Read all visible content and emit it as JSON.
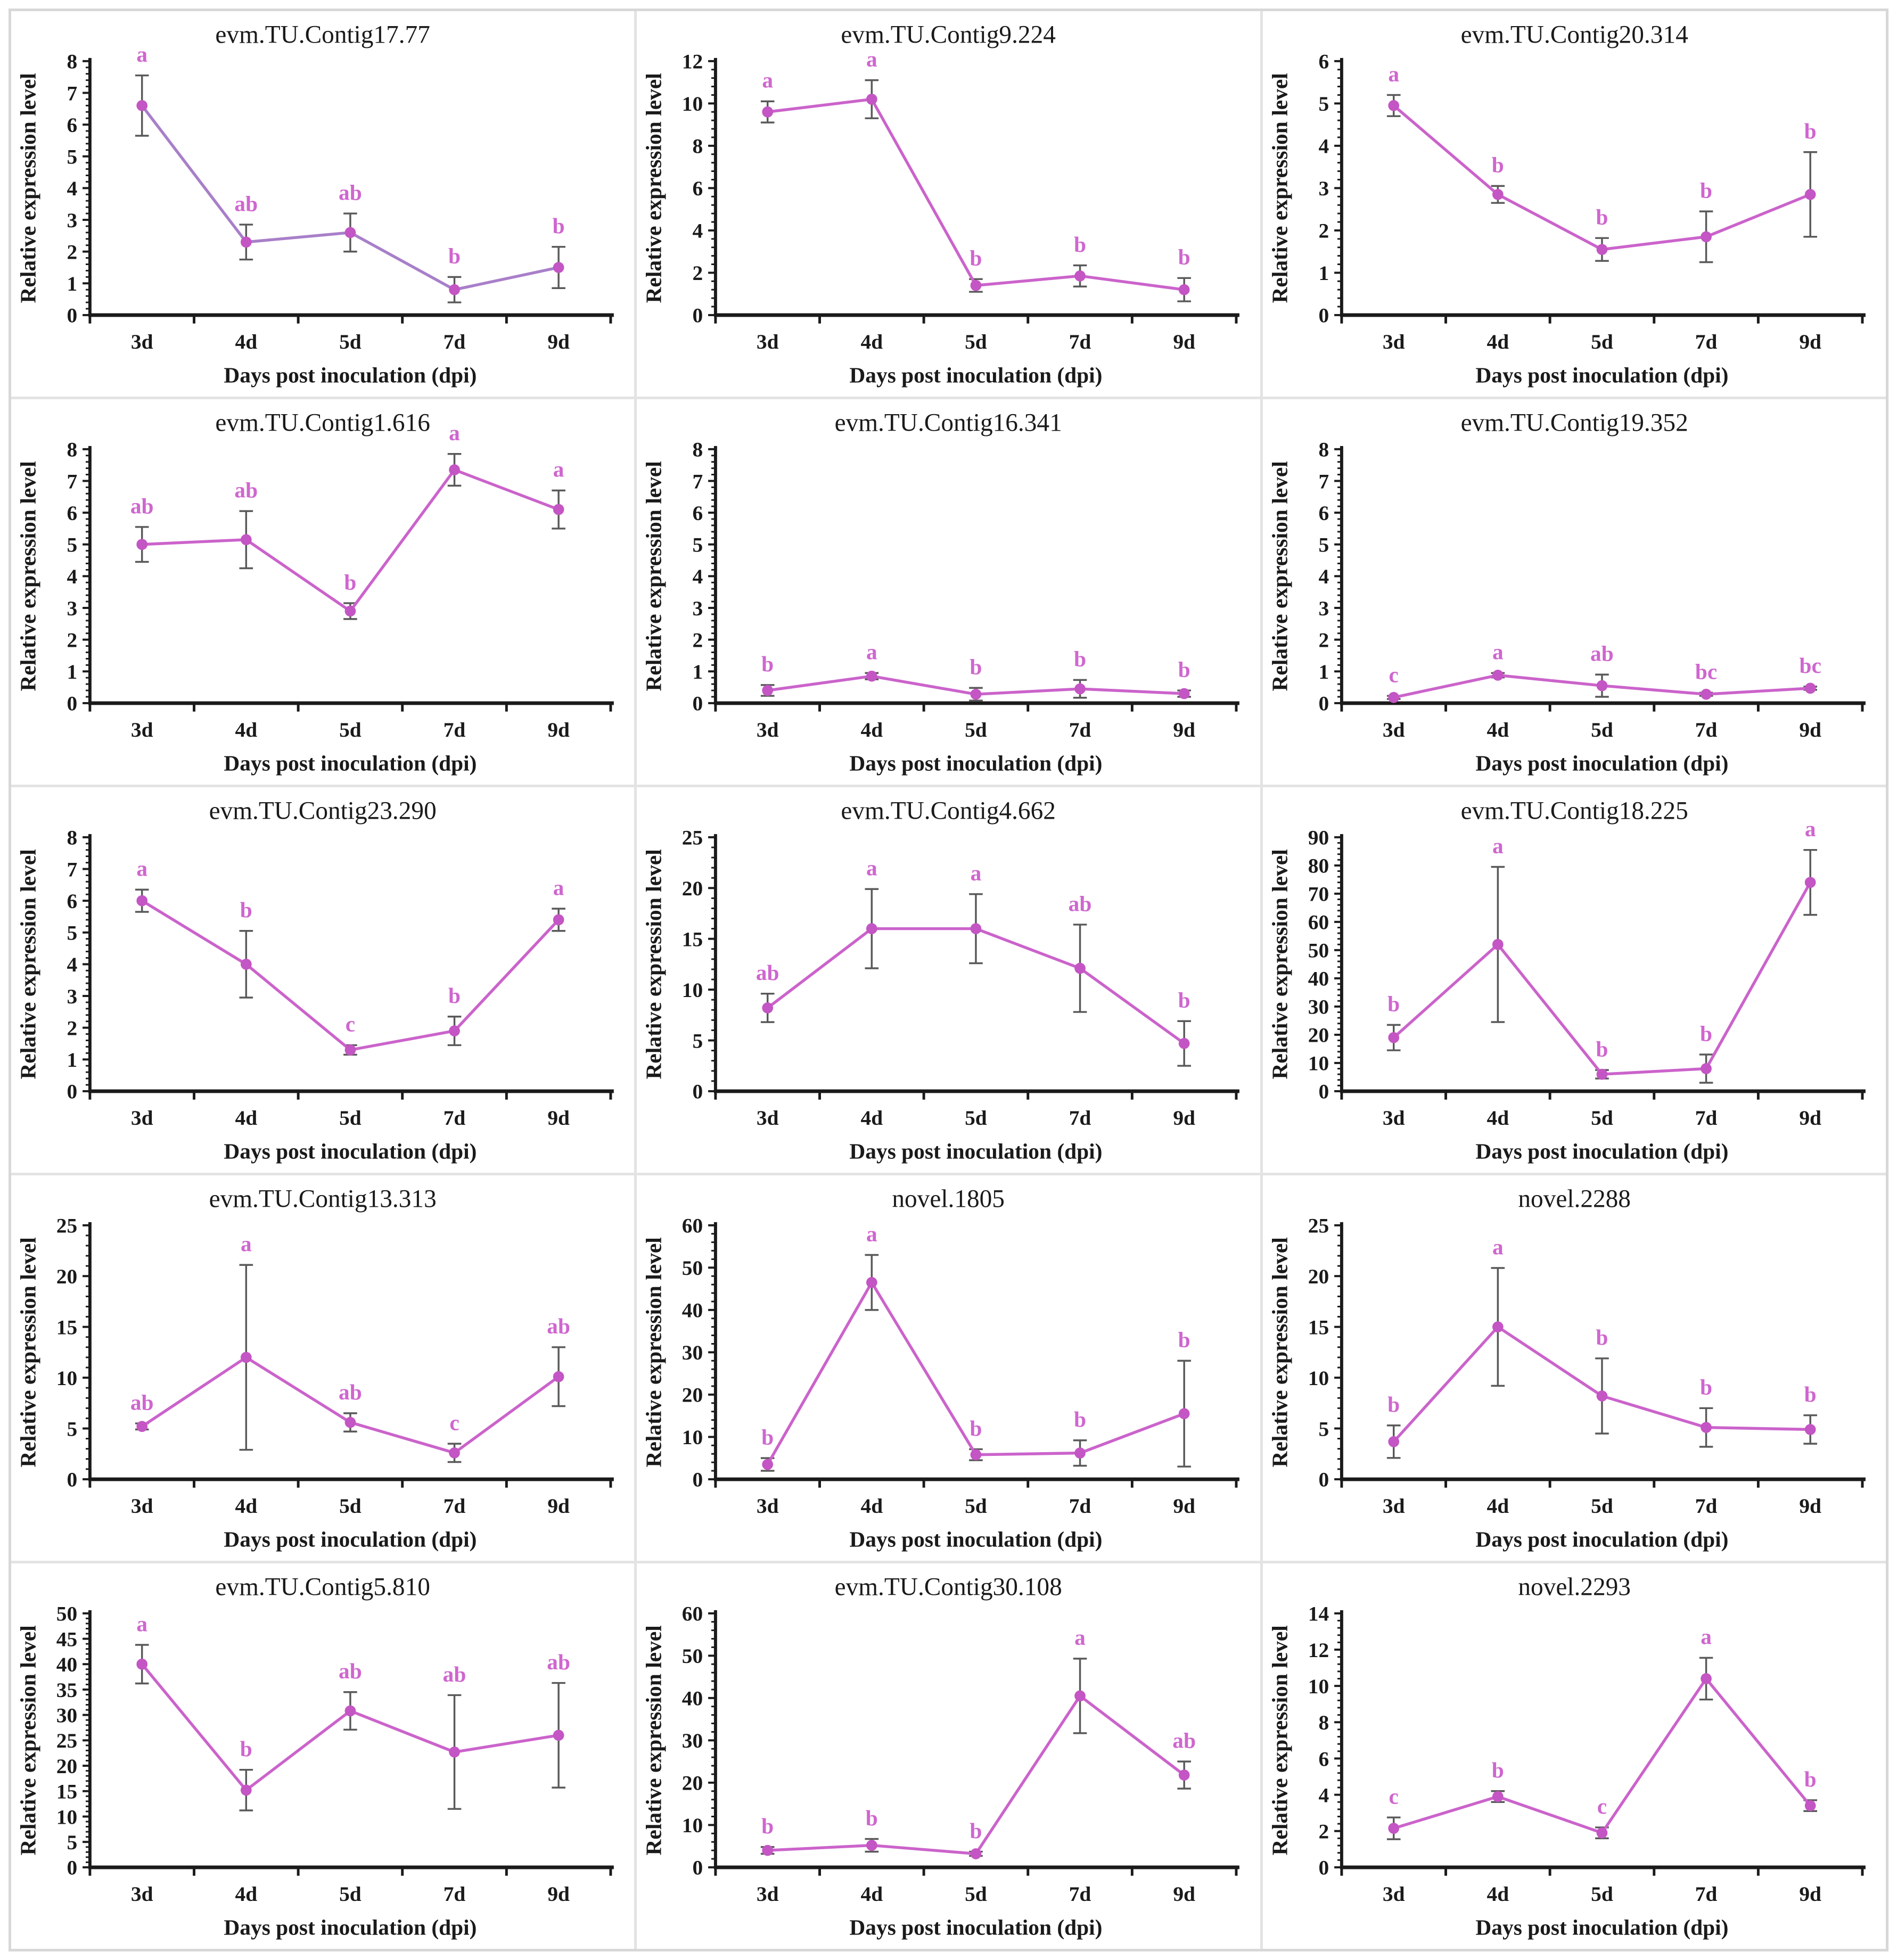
{
  "figure": {
    "ylabel": "Relative expression level",
    "xlabel": "Days post inoculation (dpi)",
    "categories": [
      "3d",
      "4d",
      "5d",
      "7d",
      "9d"
    ],
    "colors": {
      "axis": "#1a1a1a",
      "tick_text": "#1a1a1a",
      "title_text": "#1a1a1a",
      "error_bar": "#595959",
      "letters": "#cf66cf",
      "marker": "#c455c4",
      "default_line": "#cb63cb",
      "panel_border": "#d8d8d8",
      "panel_divider": "#e3e3e3"
    }
  },
  "chart_data": [
    {
      "type": "line",
      "title": "evm.TU.Contig17.77",
      "xlabel": "Days post inoculation (dpi)",
      "ylabel": "Relative expression level",
      "categories": [
        "3d",
        "4d",
        "5d",
        "7d",
        "9d"
      ],
      "values": [
        6.6,
        2.3,
        2.6,
        0.8,
        1.5
      ],
      "errors": [
        0.95,
        0.55,
        0.6,
        0.4,
        0.65
      ],
      "significance_letters": [
        "a",
        "ab",
        "ab",
        "b",
        "b"
      ],
      "ylim": [
        0,
        8
      ],
      "ytick_step": 1,
      "line_color": "#a87fc9"
    },
    {
      "type": "line",
      "title": "evm.TU.Contig9.224",
      "xlabel": "Days post inoculation (dpi)",
      "ylabel": "Relative expression level",
      "categories": [
        "3d",
        "4d",
        "5d",
        "7d",
        "9d"
      ],
      "values": [
        9.6,
        10.2,
        1.4,
        1.85,
        1.2
      ],
      "errors": [
        0.5,
        0.9,
        0.3,
        0.5,
        0.55
      ],
      "significance_letters": [
        "a",
        "a",
        "b",
        "b",
        "b"
      ],
      "ylim": [
        0,
        12
      ],
      "ytick_step": 2,
      "line_color": "#cb63cb"
    },
    {
      "type": "line",
      "title": "evm.TU.Contig20.314",
      "xlabel": "Days post inoculation (dpi)",
      "ylabel": "Relative expression level",
      "categories": [
        "3d",
        "4d",
        "5d",
        "7d",
        "9d"
      ],
      "values": [
        4.95,
        2.85,
        1.55,
        1.85,
        2.85
      ],
      "errors": [
        0.25,
        0.2,
        0.27,
        0.6,
        1.0
      ],
      "significance_letters": [
        "a",
        "b",
        "b",
        "b",
        "b"
      ],
      "ylim": [
        0,
        6
      ],
      "ytick_step": 1,
      "line_color": "#cb63cb"
    },
    {
      "type": "line",
      "title": "evm.TU.Contig1.616",
      "xlabel": "Days post inoculation (dpi)",
      "ylabel": "Relative expression level",
      "categories": [
        "3d",
        "4d",
        "5d",
        "7d",
        "9d"
      ],
      "values": [
        5.0,
        5.15,
        2.9,
        7.35,
        6.1
      ],
      "errors": [
        0.55,
        0.9,
        0.25,
        0.5,
        0.6
      ],
      "significance_letters": [
        "ab",
        "ab",
        "b",
        "a",
        "a"
      ],
      "ylim": [
        0,
        8
      ],
      "ytick_step": 1,
      "line_color": "#cb63cb"
    },
    {
      "type": "line",
      "title": "evm.TU.Contig16.341",
      "xlabel": "Days post inoculation (dpi)",
      "ylabel": "Relative expression level",
      "categories": [
        "3d",
        "4d",
        "5d",
        "7d",
        "9d"
      ],
      "values": [
        0.4,
        0.85,
        0.28,
        0.45,
        0.3
      ],
      "errors": [
        0.17,
        0.1,
        0.2,
        0.28,
        0.1
      ],
      "significance_letters": [
        "b",
        "a",
        "b",
        "b",
        "b"
      ],
      "ylim": [
        0,
        8
      ],
      "ytick_step": 1,
      "line_color": "#cb63cb"
    },
    {
      "type": "line",
      "title": "evm.TU.Contig19.352",
      "xlabel": "Days post inoculation (dpi)",
      "ylabel": "Relative expression level",
      "categories": [
        "3d",
        "4d",
        "5d",
        "7d",
        "9d"
      ],
      "values": [
        0.18,
        0.88,
        0.55,
        0.28,
        0.47
      ],
      "errors": [
        0.05,
        0.07,
        0.35,
        0.05,
        0.05
      ],
      "significance_letters": [
        "c",
        "a",
        "ab",
        "bc",
        "bc"
      ],
      "ylim": [
        0,
        8
      ],
      "ytick_step": 1,
      "line_color": "#cb63cb"
    },
    {
      "type": "line",
      "title": "evm.TU.Contig23.290",
      "xlabel": "Days post inoculation (dpi)",
      "ylabel": "Relative expression level",
      "categories": [
        "3d",
        "4d",
        "5d",
        "7d",
        "9d"
      ],
      "values": [
        6.0,
        4.0,
        1.3,
        1.9,
        5.4
      ],
      "errors": [
        0.35,
        1.05,
        0.15,
        0.45,
        0.35
      ],
      "significance_letters": [
        "a",
        "b",
        "c",
        "b",
        "a"
      ],
      "ylim": [
        0,
        8
      ],
      "ytick_step": 1,
      "line_color": "#cb63cb"
    },
    {
      "type": "line",
      "title": "evm.TU.Contig4.662",
      "xlabel": "Days post inoculation (dpi)",
      "ylabel": "Relative expression level",
      "categories": [
        "3d",
        "4d",
        "5d",
        "7d",
        "9d"
      ],
      "values": [
        8.2,
        16.0,
        16.0,
        12.1,
        4.7
      ],
      "errors": [
        1.4,
        3.9,
        3.4,
        4.3,
        2.2
      ],
      "significance_letters": [
        "ab",
        "a",
        "a",
        "ab",
        "b"
      ],
      "ylim": [
        0,
        25
      ],
      "ytick_step": 5,
      "line_color": "#cb63cb"
    },
    {
      "type": "line",
      "title": "evm.TU.Contig18.225",
      "xlabel": "Days post inoculation (dpi)",
      "ylabel": "Relative expression level",
      "categories": [
        "3d",
        "4d",
        "5d",
        "7d",
        "9d"
      ],
      "values": [
        19.0,
        52.0,
        6.0,
        8.0,
        74.0
      ],
      "errors": [
        4.5,
        27.5,
        1.5,
        5.0,
        11.5
      ],
      "significance_letters": [
        "b",
        "a",
        "b",
        "b",
        "a"
      ],
      "ylim": [
        0,
        90
      ],
      "ytick_step": 10,
      "line_color": "#cb63cb"
    },
    {
      "type": "line",
      "title": "evm.TU.Contig13.313",
      "xlabel": "Days post inoculation (dpi)",
      "ylabel": "Relative expression level",
      "categories": [
        "3d",
        "4d",
        "5d",
        "7d",
        "9d"
      ],
      "values": [
        5.2,
        12.0,
        5.6,
        2.6,
        10.1
      ],
      "errors": [
        0.3,
        9.1,
        0.9,
        0.9,
        2.9
      ],
      "significance_letters": [
        "ab",
        "a",
        "ab",
        "c",
        "ab"
      ],
      "ylim": [
        0,
        25
      ],
      "ytick_step": 5,
      "line_color": "#cb63cb"
    },
    {
      "type": "line",
      "title": "novel.1805",
      "xlabel": "Days post inoculation (dpi)",
      "ylabel": "Relative expression level",
      "categories": [
        "3d",
        "4d",
        "5d",
        "7d",
        "9d"
      ],
      "values": [
        3.5,
        46.5,
        5.8,
        6.2,
        15.5
      ],
      "errors": [
        1.5,
        6.5,
        1.3,
        3.0,
        12.5
      ],
      "significance_letters": [
        "b",
        "a",
        "b",
        "b",
        "b"
      ],
      "ylim": [
        0,
        60
      ],
      "ytick_step": 10,
      "line_color": "#cb63cb"
    },
    {
      "type": "line",
      "title": "novel.2288",
      "xlabel": "Days post inoculation (dpi)",
      "ylabel": "Relative expression level",
      "categories": [
        "3d",
        "4d",
        "5d",
        "7d",
        "9d"
      ],
      "values": [
        3.7,
        15.0,
        8.2,
        5.1,
        4.9
      ],
      "errors": [
        1.6,
        5.8,
        3.7,
        1.9,
        1.4
      ],
      "significance_letters": [
        "b",
        "a",
        "b",
        "b",
        "b"
      ],
      "ylim": [
        0,
        25
      ],
      "ytick_step": 5,
      "line_color": "#cb63cb"
    },
    {
      "type": "line",
      "title": "evm.TU.Contig5.810",
      "xlabel": "Days post inoculation (dpi)",
      "ylabel": "Relative expression level",
      "categories": [
        "3d",
        "4d",
        "5d",
        "7d",
        "9d"
      ],
      "values": [
        40.0,
        15.2,
        30.8,
        22.7,
        26.0
      ],
      "errors": [
        3.8,
        4.0,
        3.7,
        11.2,
        10.3
      ],
      "significance_letters": [
        "a",
        "b",
        "ab",
        "ab",
        "ab"
      ],
      "ylim": [
        0,
        50
      ],
      "ytick_step": 5,
      "line_color": "#cb63cb"
    },
    {
      "type": "line",
      "title": "evm.TU.Contig30.108",
      "xlabel": "Days post inoculation (dpi)",
      "ylabel": "Relative expression level",
      "categories": [
        "3d",
        "4d",
        "5d",
        "7d",
        "9d"
      ],
      "values": [
        4.0,
        5.2,
        3.2,
        40.5,
        21.8
      ],
      "errors": [
        0.8,
        1.5,
        0.5,
        8.8,
        3.2
      ],
      "significance_letters": [
        "b",
        "b",
        "b",
        "a",
        "ab"
      ],
      "ylim": [
        0,
        60
      ],
      "ytick_step": 10,
      "line_color": "#cb63cb"
    },
    {
      "type": "line",
      "title": "novel.2293",
      "xlabel": "Days post inoculation (dpi)",
      "ylabel": "Relative expression level",
      "categories": [
        "3d",
        "4d",
        "5d",
        "7d",
        "9d"
      ],
      "values": [
        2.15,
        3.9,
        1.9,
        10.4,
        3.4
      ],
      "errors": [
        0.6,
        0.3,
        0.3,
        1.15,
        0.3
      ],
      "significance_letters": [
        "c",
        "b",
        "c",
        "a",
        "b"
      ],
      "ylim": [
        0,
        14
      ],
      "ytick_step": 2,
      "line_color": "#cb63cb"
    }
  ]
}
